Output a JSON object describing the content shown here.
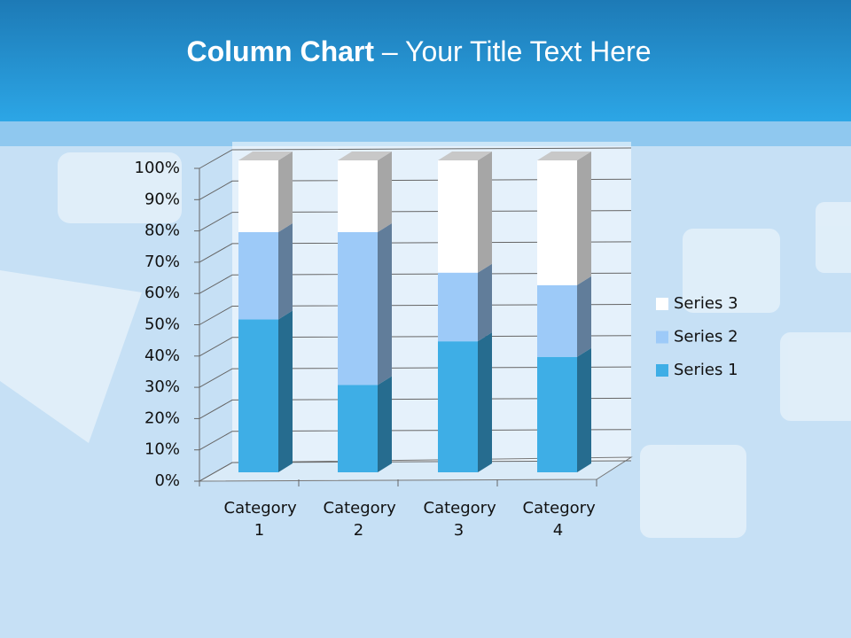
{
  "header": {
    "title_bold": "Column Chart",
    "title_rest": "– Your Title Text Here"
  },
  "chart_data": {
    "type": "stacked-bar-3d",
    "categories": [
      "Category 1",
      "Category 2",
      "Category 3",
      "Category 4"
    ],
    "series": [
      {
        "name": "Series 1",
        "color": "#3eaee6",
        "values": [
          49,
          28,
          42,
          37
        ]
      },
      {
        "name": "Series 2",
        "color": "#9dcaf8",
        "values": [
          28,
          49,
          22,
          23
        ]
      },
      {
        "name": "Series 3",
        "color": "#ffffff",
        "values": [
          23,
          23,
          36,
          40
        ]
      }
    ],
    "ylim": [
      0,
      100
    ],
    "yticks": [
      {
        "value": 0,
        "label": "0%"
      },
      {
        "value": 10,
        "label": "10%"
      },
      {
        "value": 20,
        "label": "20%"
      },
      {
        "value": 30,
        "label": "30%"
      },
      {
        "value": 40,
        "label": "40%"
      },
      {
        "value": 50,
        "label": "50%"
      },
      {
        "value": 60,
        "label": "60%"
      },
      {
        "value": 70,
        "label": "70%"
      },
      {
        "value": 80,
        "label": "80%"
      },
      {
        "value": 90,
        "label": "90%"
      },
      {
        "value": 100,
        "label": "100%"
      }
    ],
    "grid": true,
    "legend": "right"
  }
}
